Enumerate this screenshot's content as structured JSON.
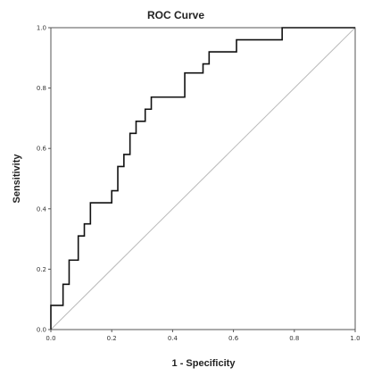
{
  "chart_data": {
    "type": "line",
    "title": "ROC Curve",
    "xlabel": "1 - Specificity",
    "ylabel": "Sensitivity",
    "xlim": [
      0.0,
      1.0
    ],
    "ylim": [
      0.0,
      1.0
    ],
    "x_ticks": [
      "0.0",
      "0.2",
      "0.4",
      "0.6",
      "0.8",
      "1.0"
    ],
    "y_ticks": [
      "0.0",
      "0.2",
      "0.4",
      "0.6",
      "0.8",
      "1.0"
    ],
    "grid": false,
    "series": [
      {
        "color": "#111111",
        "points": [
          [
            0.0,
            0.0
          ],
          [
            0.0,
            0.08
          ],
          [
            0.04,
            0.08
          ],
          [
            0.04,
            0.15
          ],
          [
            0.06,
            0.15
          ],
          [
            0.06,
            0.23
          ],
          [
            0.09,
            0.23
          ],
          [
            0.09,
            0.31
          ],
          [
            0.11,
            0.31
          ],
          [
            0.11,
            0.35
          ],
          [
            0.13,
            0.35
          ],
          [
            0.13,
            0.42
          ],
          [
            0.2,
            0.42
          ],
          [
            0.2,
            0.46
          ],
          [
            0.22,
            0.46
          ],
          [
            0.22,
            0.54
          ],
          [
            0.24,
            0.54
          ],
          [
            0.24,
            0.58
          ],
          [
            0.26,
            0.58
          ],
          [
            0.26,
            0.65
          ],
          [
            0.28,
            0.65
          ],
          [
            0.28,
            0.69
          ],
          [
            0.31,
            0.69
          ],
          [
            0.31,
            0.73
          ],
          [
            0.33,
            0.73
          ],
          [
            0.33,
            0.77
          ],
          [
            0.44,
            0.77
          ],
          [
            0.44,
            0.85
          ],
          [
            0.5,
            0.85
          ],
          [
            0.5,
            0.88
          ],
          [
            0.52,
            0.88
          ],
          [
            0.52,
            0.92
          ],
          [
            0.61,
            0.92
          ],
          [
            0.61,
            0.96
          ],
          [
            0.76,
            0.96
          ],
          [
            0.76,
            1.0
          ],
          [
            1.0,
            1.0
          ]
        ]
      },
      {
        "color": "#bbbbbb",
        "points": [
          [
            0.0,
            0.0
          ],
          [
            1.0,
            1.0
          ]
        ]
      }
    ]
  }
}
